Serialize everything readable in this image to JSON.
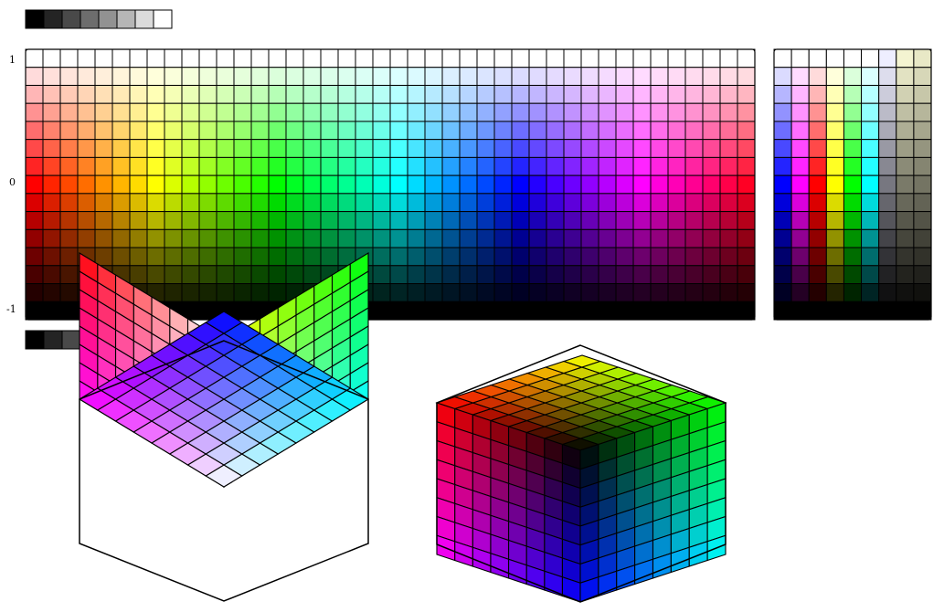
{
  "axis": {
    "tick_top": "1",
    "tick_mid": "0",
    "tick_bottom": "-1"
  },
  "grayscale_strip": {
    "levels": [
      0,
      1,
      2,
      3,
      4,
      5,
      6,
      7
    ],
    "max_level": 7
  },
  "hue_lightness_grid": {
    "columns": 42,
    "rows": 15,
    "lightness_range": [
      -1,
      1
    ]
  },
  "side_grid": {
    "column_hues": [
      "#0000ff",
      "#ff00ff",
      "#ff0000",
      "#ffff00",
      "#00ff00",
      "#00ffff"
    ],
    "gray_columns": 3,
    "rows": 15
  },
  "color_cubes": {
    "subdivisions": 8,
    "outline_color": "#000000"
  }
}
